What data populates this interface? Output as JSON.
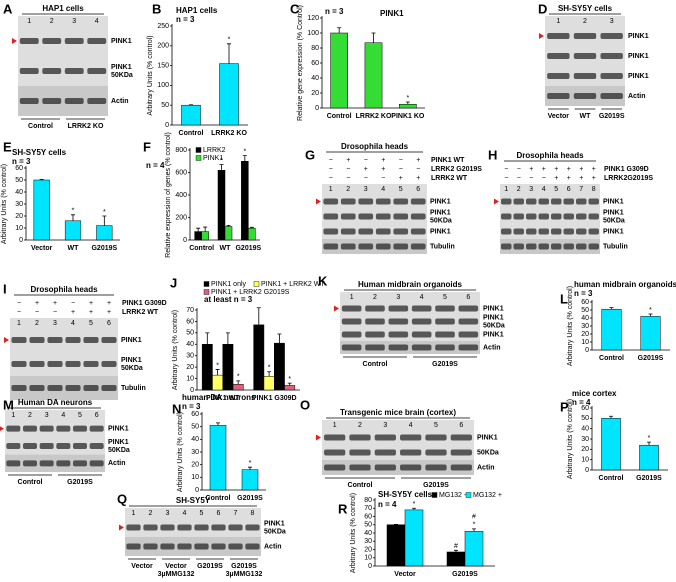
{
  "blots": [
    {
      "label": "A",
      "title": "HAP1 cells",
      "lanes": [
        "1",
        "2",
        "3",
        "4"
      ],
      "bands": [
        [
          "PINK1"
        ],
        [
          "PINK1",
          "50KDa"
        ],
        [
          "Actin"
        ]
      ],
      "groups": [
        [
          "Control"
        ],
        [
          "LRRK2 KO"
        ]
      ]
    },
    {
      "label": "D",
      "title": "SH-SY5Y cells",
      "lanes": [
        "1",
        "2",
        "3"
      ],
      "bands": [
        [
          "PINK1"
        ],
        [
          "PINK1"
        ],
        [
          "PINK1"
        ],
        [
          "Actin"
        ]
      ],
      "groups": [
        [
          "Vector"
        ],
        [
          "WT"
        ],
        [
          "G2019S"
        ]
      ]
    },
    {
      "label": "G",
      "title": "Drosophila heads",
      "lanes": [
        "1",
        "2",
        "3",
        "4",
        "5",
        "6"
      ],
      "conditions": [
        {
          "name": "PINK1 WT",
          "signs": [
            "−",
            "+",
            "−",
            "+",
            "−",
            "+"
          ]
        },
        {
          "name": "LRRK2 G2019S",
          "signs": [
            "−",
            "−",
            "+",
            "+",
            "−",
            "−"
          ]
        },
        {
          "name": "LRRK2 WT",
          "signs": [
            "−",
            "−",
            "−",
            "−",
            "+",
            "+"
          ]
        }
      ],
      "bands": [
        [
          "PINK1"
        ],
        [
          "PINK1",
          "50KDa"
        ],
        [
          "PINK1"
        ],
        [
          "Tubulin"
        ]
      ]
    },
    {
      "label": "H",
      "title": "Drosophila heads",
      "lanes": [
        "1",
        "2",
        "3",
        "4",
        "5",
        "6",
        "7",
        "8"
      ],
      "conditions": [
        {
          "name": "PINK1 G309D",
          "signs": [
            "−",
            "−",
            "+",
            "+",
            "+",
            "+",
            "+",
            "+"
          ]
        },
        {
          "name": "LRRK2G2019S",
          "signs": [
            "−",
            "−",
            "−",
            "−",
            "+",
            "+",
            "+",
            "+"
          ]
        }
      ],
      "bands": [
        [
          "PINK1"
        ],
        [
          "PINK1",
          "50KDa"
        ],
        [
          "PINK1"
        ],
        [
          "Tubulin"
        ]
      ]
    },
    {
      "label": "I",
      "title": "Drosophila heads",
      "lanes": [
        "1",
        "2",
        "3",
        "4",
        "5",
        "6"
      ],
      "conditions": [
        {
          "name": "PINK1 G309D",
          "signs": [
            "−",
            "+",
            "+",
            "−",
            "+",
            "+"
          ]
        },
        {
          "name": "LRRK2 WT",
          "signs": [
            "−",
            "−",
            "−",
            "+",
            "+",
            "+"
          ]
        }
      ],
      "bands": [
        [
          "PINK1"
        ],
        [
          "PINK1",
          "50KDa"
        ],
        [
          "Tubulin"
        ]
      ]
    },
    {
      "label": "K",
      "title": "Human midbrain organoids",
      "lanes": [
        "1",
        "2",
        "3",
        "4",
        "5",
        "6"
      ],
      "bands": [
        [
          "PINK1"
        ],
        [
          "PINK1",
          "50KDa"
        ],
        [
          "PINK1"
        ],
        [
          "Actin"
        ]
      ],
      "groups": [
        [
          "Control"
        ],
        [
          "G2019S"
        ]
      ]
    },
    {
      "label": "M",
      "title": "Human DA neurons",
      "lanes": [
        "1",
        "2",
        "3",
        "4",
        "5",
        "6"
      ],
      "bands": [
        [
          "PINK1"
        ],
        [
          "PINK1",
          "50KDa"
        ],
        [
          "Actin"
        ]
      ],
      "groups": [
        [
          "Control"
        ],
        [
          "G2019S"
        ]
      ]
    },
    {
      "label": "O",
      "title": "Transgenic mice brain (cortex)",
      "lanes": [
        "1",
        "2",
        "3",
        "4",
        "5",
        "6"
      ],
      "bands": [
        [
          "PINK1"
        ],
        [
          "50KDa"
        ],
        [
          "Actin"
        ]
      ],
      "groups": [
        [
          "Control"
        ],
        [
          "G2019S"
        ]
      ]
    },
    {
      "label": "Q",
      "title": "SH-SY5Y",
      "lanes": [
        "1",
        "2",
        "3",
        "4",
        "5",
        "6",
        "7",
        "8"
      ],
      "bands": [
        [
          "PINK1",
          "50KDa"
        ],
        [
          "Actin"
        ]
      ],
      "groups": [
        [
          "Vector"
        ],
        [
          "Vector",
          "3µMMG132"
        ],
        [
          "G2019S"
        ],
        [
          "G2019S",
          "3µMMG132"
        ]
      ]
    }
  ],
  "chart_data": [
    {
      "type": "bar",
      "label": "B",
      "title": "HAP1 cells",
      "subtitle": "n = 3",
      "y_label": "Arbitrary Units (% control)",
      "categories": [
        "Control",
        "LRRK2 KO"
      ],
      "ylim": [
        0,
        250
      ],
      "yticks": [
        0,
        50,
        100,
        150,
        200,
        250
      ],
      "series": [
        {
          "color": "#00e5ff",
          "values": [
            50,
            155
          ],
          "errors": [
            1,
            50
          ],
          "marks": [
            null,
            "*"
          ]
        }
      ]
    },
    {
      "type": "bar",
      "label": "C",
      "title": "PINK1",
      "subtitle": "n = 3",
      "y_label": "Relative gene expression (% Control)",
      "categories": [
        "Control",
        "LRRK2 KO",
        "PINK1 KO"
      ],
      "ylim": [
        0,
        120
      ],
      "yticks": [
        0,
        20,
        40,
        60,
        80,
        100,
        120
      ],
      "series": [
        {
          "color": "#33dd33",
          "values": [
            100,
            87,
            5
          ],
          "errors": [
            7,
            13,
            3
          ],
          "marks": [
            null,
            null,
            "*"
          ]
        }
      ]
    },
    {
      "type": "bar",
      "label": "E",
      "title": "SH-SY5Y cells",
      "subtitle": "n = 3",
      "y_label": "Arbitrary Units (% control)",
      "categories": [
        "Vector",
        "WT",
        "G2019S"
      ],
      "ylim": [
        0,
        60
      ],
      "yticks": [
        0,
        10,
        20,
        30,
        40,
        50,
        60
      ],
      "series": [
        {
          "color": "#00e5ff",
          "values": [
            50,
            16,
            12
          ],
          "errors": [
            0.5,
            5,
            8
          ],
          "marks": [
            null,
            "*",
            "*"
          ]
        }
      ]
    },
    {
      "type": "bar",
      "label": "F",
      "subtitle": "n = 4",
      "y_label": "Relative expression of genes (% control)",
      "categories": [
        "Control",
        "WT",
        "G2019S"
      ],
      "ylim": [
        0,
        800
      ],
      "yticks": [
        0,
        200,
        400,
        600,
        800
      ],
      "series": [
        {
          "name": "LRRK2",
          "color": "#000000",
          "values": [
            75,
            620,
            700
          ],
          "errors": [
            30,
            50,
            50
          ],
          "marks": [
            null,
            "*",
            "*"
          ]
        },
        {
          "name": "PINK1",
          "color": "#33dd33",
          "values": [
            75,
            120,
            105
          ],
          "errors": [
            40,
            10,
            8
          ],
          "marks": [
            null,
            null,
            null
          ]
        }
      ]
    },
    {
      "type": "bar",
      "label": "J",
      "subtitle": "at least n = 3",
      "y_label": "Arbitrary Units (% control)",
      "categories": [
        "PINK1 WT",
        "PINK1 G309D"
      ],
      "ylim": [
        0,
        70
      ],
      "yticks": [
        0,
        10,
        20,
        30,
        40,
        50,
        60,
        70
      ],
      "series": [
        {
          "name": "PINK1 only",
          "color": "#000000",
          "values": [
            40,
            57
          ],
          "errors": [
            10,
            15
          ],
          "marks": [
            null,
            null
          ]
        },
        {
          "name": "PINK1 + LRRK2 WT",
          "color": "#ffff66",
          "values": [
            13,
            12
          ],
          "errors": [
            5,
            4
          ],
          "marks": [
            "*",
            "*"
          ]
        },
        {
          "color": "#000000",
          "values": [
            40,
            41
          ],
          "errors": [
            10,
            8
          ],
          "marks": [
            null,
            null
          ]
        },
        {
          "name": "PINK1 + LRRK2 G2019S",
          "color": "#e0607a",
          "values": [
            5,
            4
          ],
          "errors": [
            3,
            2
          ],
          "marks": [
            "*",
            "*"
          ]
        }
      ]
    },
    {
      "type": "bar",
      "label": "L",
      "title": "human midbrain organoids",
      "subtitle": "n = 3",
      "y_label": "Arbitrary Units (% control)",
      "categories": [
        "Control",
        "G2019S"
      ],
      "ylim": [
        0,
        60
      ],
      "yticks": [
        0,
        10,
        20,
        30,
        40,
        50,
        60
      ],
      "series": [
        {
          "color": "#00e5ff",
          "values": [
            51,
            42
          ],
          "errors": [
            2,
            3
          ],
          "marks": [
            null,
            "*"
          ]
        }
      ]
    },
    {
      "type": "bar",
      "label": "N",
      "title": "human DA neurons",
      "subtitle": "n = 3",
      "y_label": "Arbitrary Units (% control)",
      "categories": [
        "Control",
        "G2019S"
      ],
      "ylim": [
        0,
        60
      ],
      "yticks": [
        0,
        10,
        20,
        30,
        40,
        50,
        60
      ],
      "series": [
        {
          "color": "#00e5ff",
          "values": [
            51,
            16
          ],
          "errors": [
            2,
            2
          ],
          "marks": [
            null,
            "*"
          ]
        }
      ]
    },
    {
      "type": "bar",
      "label": "P",
      "title": "mice cortex",
      "subtitle": "n = 4",
      "y_label": "Arbitrary Units (% control)",
      "categories": [
        "Control",
        "G2019S"
      ],
      "ylim": [
        0,
        60
      ],
      "yticks": [
        0,
        10,
        20,
        30,
        40,
        50,
        60
      ],
      "series": [
        {
          "color": "#00e5ff",
          "values": [
            50,
            24
          ],
          "errors": [
            2,
            3
          ],
          "marks": [
            null,
            "*"
          ]
        }
      ]
    },
    {
      "type": "bar",
      "label": "R",
      "title": "SH-SY5Y cells",
      "subtitle": "n = 4",
      "y_label": "Arbitrary Units (% control)",
      "categories": [
        "Vector",
        "G2019S"
      ],
      "ylim": [
        0,
        80
      ],
      "yticks": [
        0,
        10,
        20,
        30,
        40,
        50,
        60,
        70,
        80
      ],
      "series": [
        {
          "name": "MG132 -",
          "color": "#000000",
          "values": [
            50,
            17
          ],
          "errors": [
            0.5,
            2
          ],
          "marks": [
            null,
            "#"
          ]
        },
        {
          "name": "MG132 +",
          "color": "#00e5ff",
          "values": [
            68,
            42
          ],
          "errors": [
            2,
            3
          ],
          "marks": [
            "*",
            [
              "#",
              "*"
            ]
          ]
        }
      ]
    }
  ]
}
